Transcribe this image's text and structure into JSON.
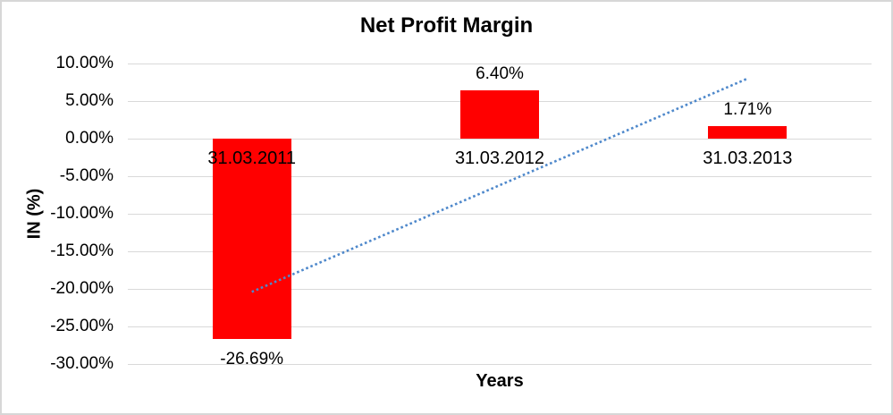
{
  "chart_data": {
    "type": "bar",
    "title": "Net Profit Margin",
    "xlabel": "Years",
    "ylabel": "IN (%)",
    "categories": [
      "31.03.2011",
      "31.03.2012",
      "31.03.2013"
    ],
    "values": [
      -26.69,
      6.4,
      1.71
    ],
    "data_labels": [
      "-26.69%",
      "6.40%",
      "1.71%"
    ],
    "yticks": [
      10,
      5,
      0,
      -5,
      -10,
      -15,
      -20,
      -25,
      -30
    ],
    "ytick_labels": [
      "10.00%",
      "5.00%",
      "0.00%",
      "-5.00%",
      "-10.00%",
      "-15.00%",
      "-20.00%",
      "-25.00%",
      "-30.00%"
    ],
    "ylim": [
      -30,
      10
    ],
    "grid": true,
    "legend": "none",
    "bar_color": "#ff0000",
    "gridline_color": "#d9d9d9",
    "frame_border_color": "#d7d7d7",
    "trendline": {
      "type": "linear",
      "style": "dotted",
      "color": "#4e88cb",
      "start_value": -20.4,
      "end_value": 8.0
    }
  }
}
